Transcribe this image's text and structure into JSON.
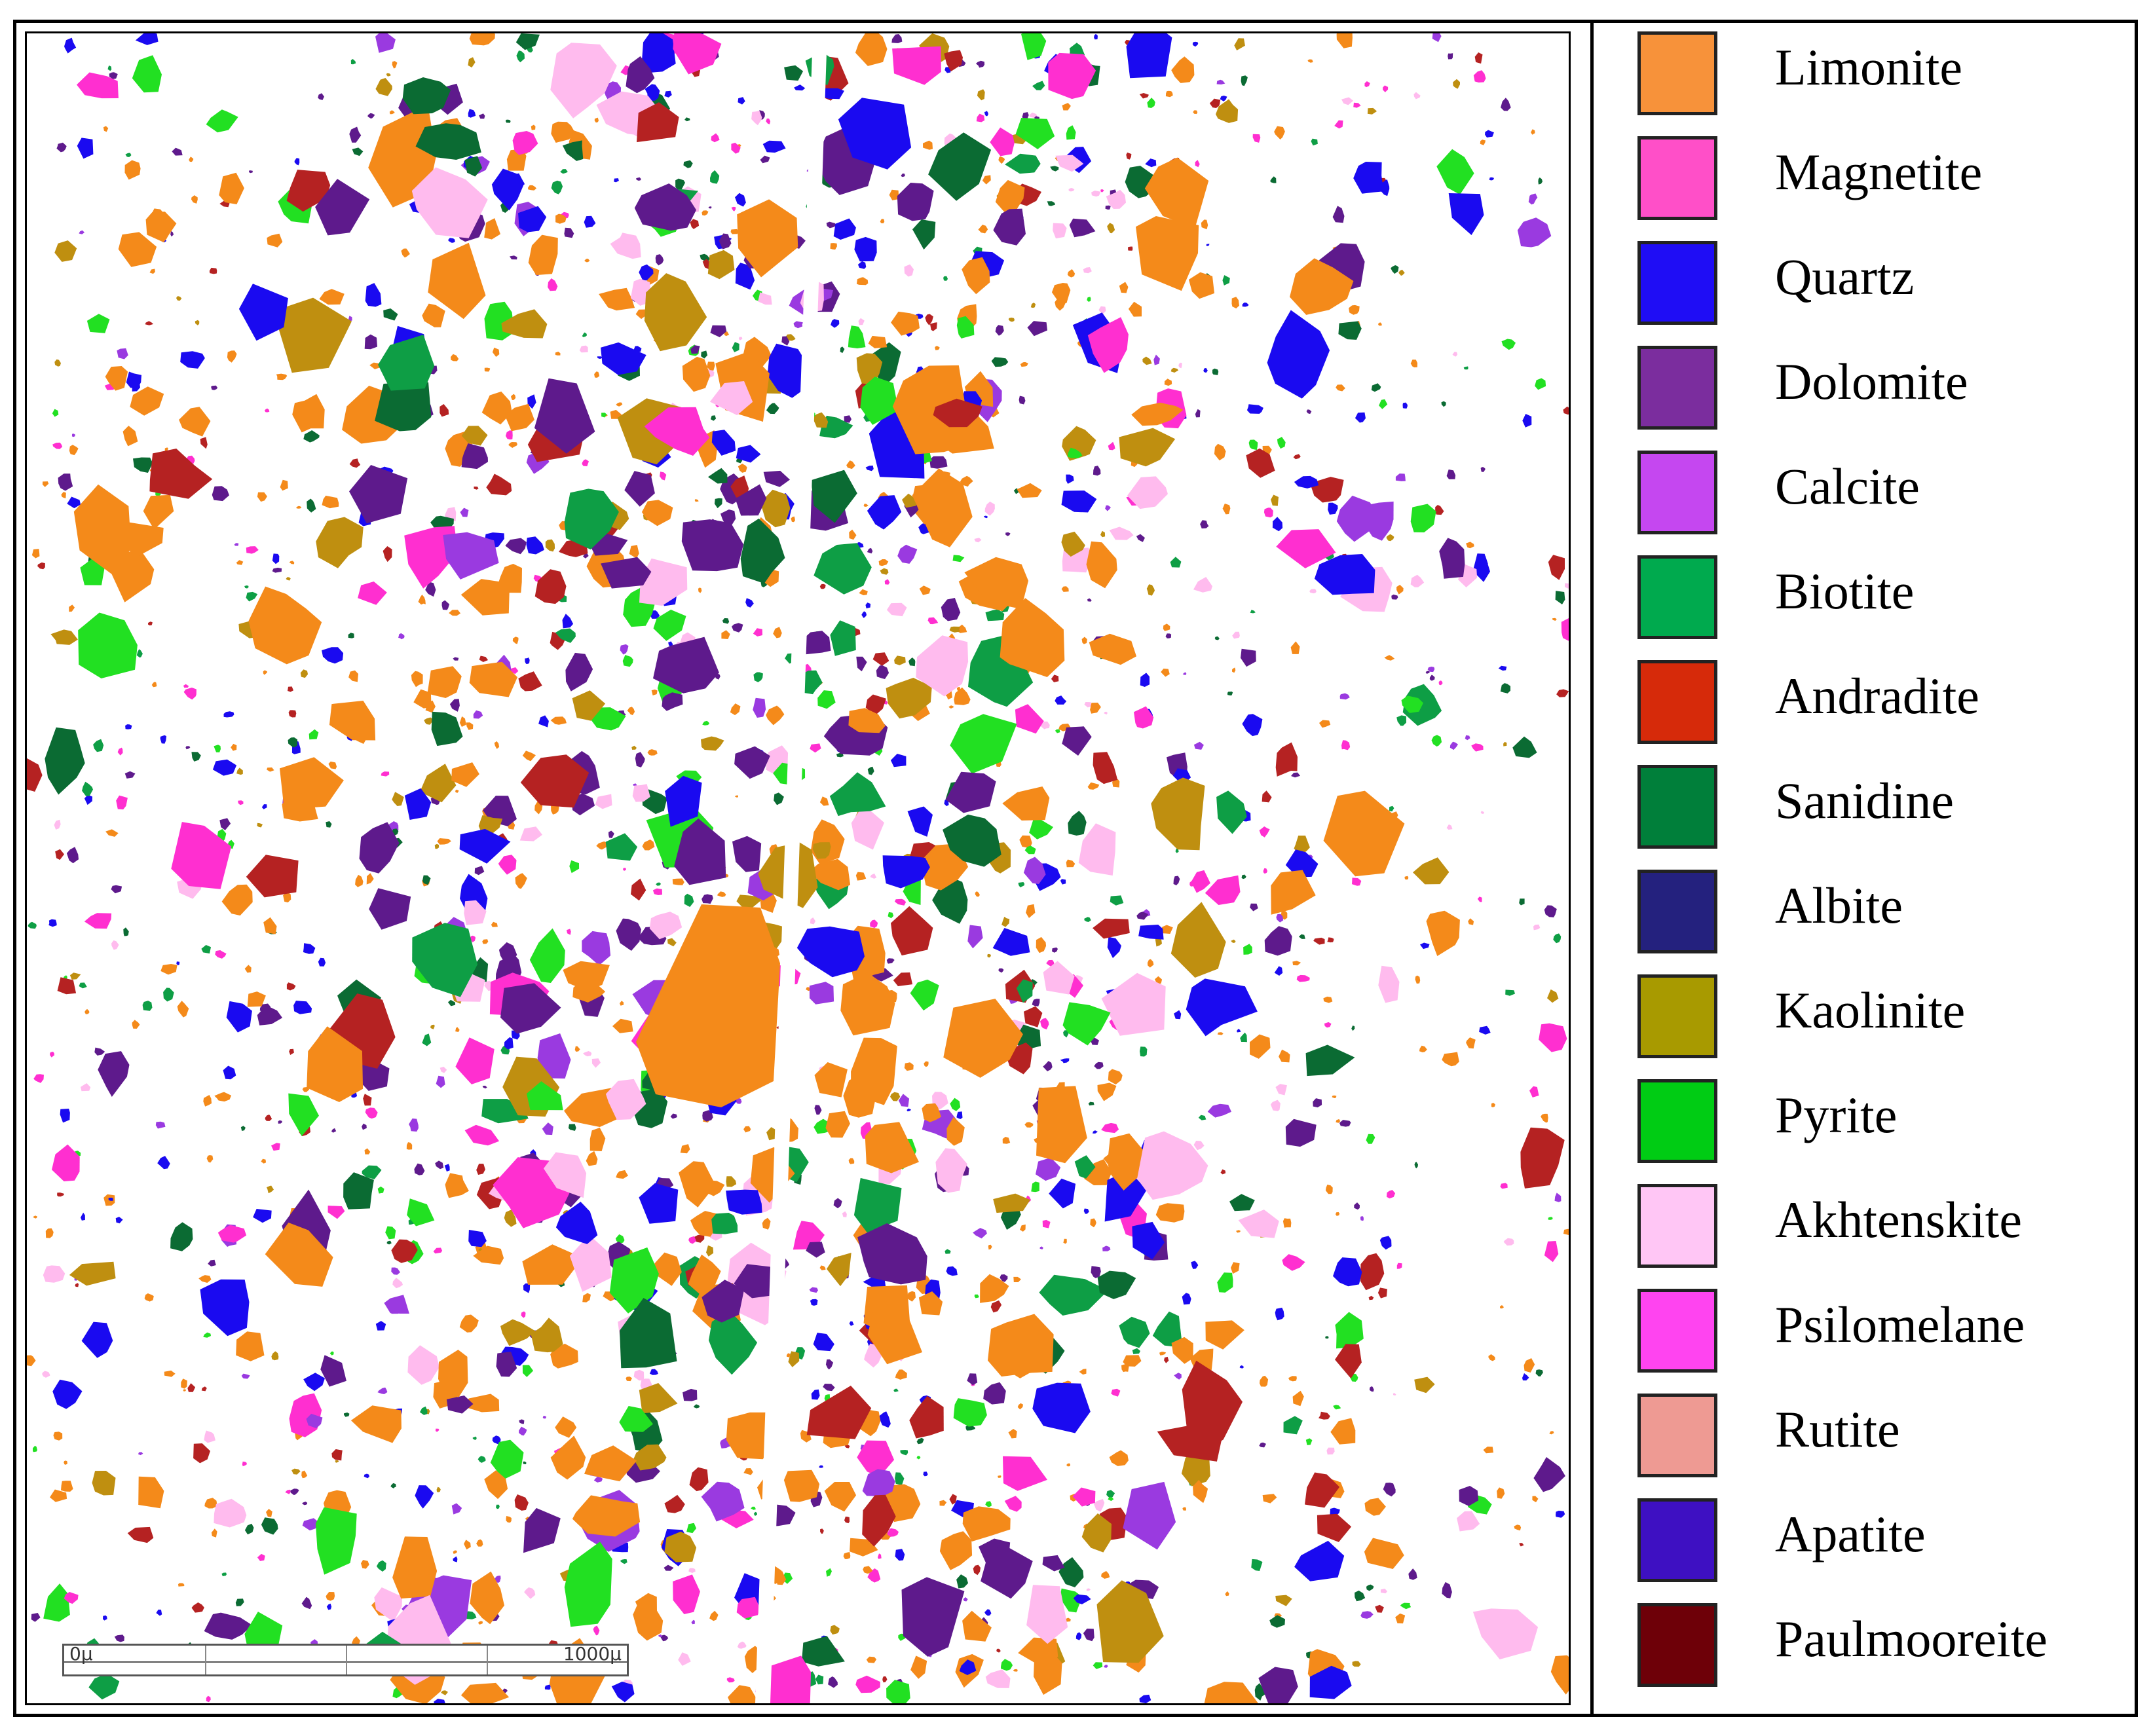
{
  "legend": {
    "items": [
      {
        "label": "Limonite",
        "color": "#F7923A"
      },
      {
        "label": "Magnetite",
        "color": "#FF4FC8"
      },
      {
        "label": "Quartz",
        "color": "#1F0DF5"
      },
      {
        "label": "Dolomite",
        "color": "#7B2D9E"
      },
      {
        "label": "Calcite",
        "color": "#C547F0"
      },
      {
        "label": "Biotite",
        "color": "#00AA4E"
      },
      {
        "label": "Andradite",
        "color": "#D62A0A"
      },
      {
        "label": "Sanidine",
        "color": "#007F3A"
      },
      {
        "label": "Albite",
        "color": "#24217E"
      },
      {
        "label": "Kaolinite",
        "color": "#A89A00"
      },
      {
        "label": "Pyrite",
        "color": "#00CC14"
      },
      {
        "label": "Akhtenskite",
        "color": "#FFC6F5"
      },
      {
        "label": "Psilomelane",
        "color": "#FF44F0"
      },
      {
        "label": "Rutite",
        "color": "#EE9A93"
      },
      {
        "label": "Apatite",
        "color": "#3E10C2"
      },
      {
        "label": "Paulmooreite",
        "color": "#6E0008"
      }
    ]
  },
  "map": {
    "palette": [
      "#F48A1A",
      "#F48A1A",
      "#F48A1A",
      "#F48A1A",
      "#1A0AF0",
      "#1A0AF0",
      "#5E1A8C",
      "#5E1A8C",
      "#9A3AE0",
      "#FF2FD0",
      "#0E9E45",
      "#B52222",
      "#BF8F10",
      "#22E022",
      "#FFBBEE",
      "#0B6B33"
    ]
  },
  "scalebar": {
    "start_label": "0µ",
    "end_label": "1000µ"
  }
}
